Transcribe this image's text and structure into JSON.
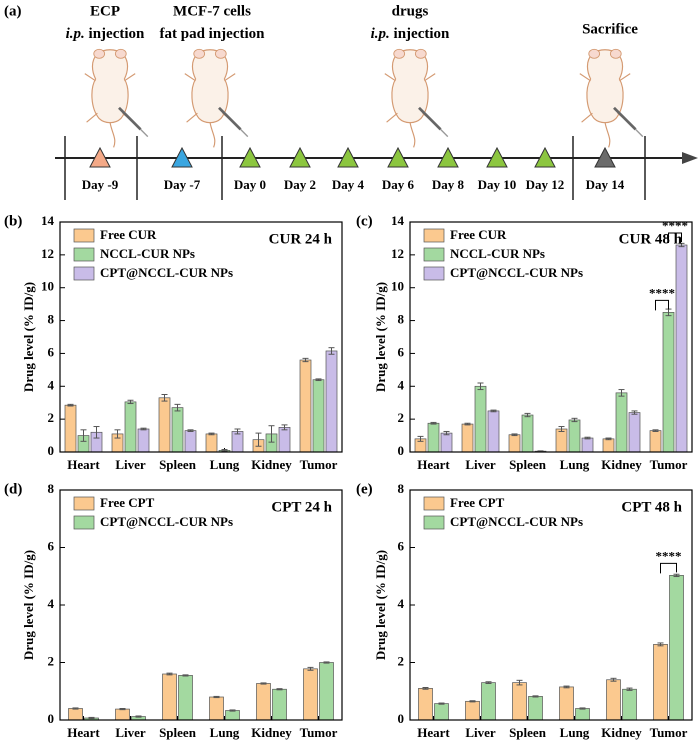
{
  "timeline": {
    "panel_label": "(a)",
    "events": [
      {
        "line1": "ECP",
        "route": "i.p.",
        "line2": "injection"
      },
      {
        "line1": "MCF-7 cells",
        "line2": "fat pad injection"
      },
      {
        "line1": "drugs",
        "route": "i.p.",
        "line2": "injection"
      },
      {
        "line1": "Sacrifice"
      }
    ],
    "days": [
      "Day -9",
      "Day -7",
      "Day 0",
      "Day 2",
      "Day 4",
      "Day 6",
      "Day 8",
      "Day 10",
      "Day 12",
      "Day 14"
    ],
    "day_colors": [
      "#f4a987",
      "#3aa6e0",
      "#8cc63f",
      "#8cc63f",
      "#8cc63f",
      "#8cc63f",
      "#8cc63f",
      "#8cc63f",
      "#8cc63f",
      "#6b6b6b"
    ]
  },
  "chart_data": [
    {
      "type": "bar",
      "panel_label": "(b)",
      "title": "CUR 24 h",
      "y_label": "Drug level (% ID/g)",
      "categories": [
        "Heart",
        "Liver",
        "Spleen",
        "Lung",
        "Kidney",
        "Tumor"
      ],
      "series": [
        {
          "name": "Free CUR",
          "color": "#fbc98f",
          "values": [
            2.85,
            1.1,
            3.3,
            1.1,
            0.75,
            5.6
          ],
          "errors": [
            0.05,
            0.25,
            0.2,
            0.05,
            0.4,
            0.1
          ]
        },
        {
          "name": "NCCL-CUR NPs",
          "color": "#a3d9a0",
          "values": [
            1.0,
            3.05,
            2.7,
            0.1,
            1.1,
            4.4
          ],
          "errors": [
            0.35,
            0.1,
            0.2,
            0.05,
            0.5,
            0.05
          ]
        },
        {
          "name": "CPT@NCCL-CUR NPs",
          "color": "#c9bce8",
          "values": [
            1.2,
            1.4,
            1.3,
            1.25,
            1.5,
            6.15
          ],
          "errors": [
            0.35,
            0.05,
            0.05,
            0.15,
            0.15,
            0.2
          ]
        }
      ],
      "ylim": [
        0,
        14
      ],
      "yticks": [
        0,
        2,
        4,
        6,
        8,
        10,
        12,
        14
      ]
    },
    {
      "type": "bar",
      "panel_label": "(c)",
      "title": "CUR 48 h",
      "y_label": "Drug level (% ID/g)",
      "categories": [
        "Heart",
        "Liver",
        "Spleen",
        "Lung",
        "Kidney",
        "Tumor"
      ],
      "series": [
        {
          "name": "Free CUR",
          "color": "#fbc98f",
          "values": [
            0.8,
            1.7,
            1.05,
            1.4,
            0.8,
            1.3
          ],
          "errors": [
            0.15,
            0.05,
            0.05,
            0.15,
            0.05,
            0.05
          ]
        },
        {
          "name": "NCCL-CUR NPs",
          "color": "#a3d9a0",
          "values": [
            1.75,
            4.0,
            2.25,
            1.95,
            3.6,
            8.5
          ],
          "errors": [
            0.05,
            0.2,
            0.1,
            0.1,
            0.2,
            0.2
          ]
        },
        {
          "name": "CPT@NCCL-CUR NPs",
          "color": "#c9bce8",
          "values": [
            1.15,
            2.5,
            0.05,
            0.85,
            2.4,
            12.6
          ],
          "errors": [
            0.1,
            0.05,
            0.02,
            0.05,
            0.1,
            0.1
          ]
        }
      ],
      "ylim": [
        0,
        14
      ],
      "yticks": [
        0,
        2,
        4,
        6,
        8,
        10,
        12,
        14
      ],
      "annotations": [
        "****",
        "****"
      ]
    },
    {
      "type": "bar",
      "panel_label": "(d)",
      "title": "CPT 24 h",
      "y_label": "Drug level (% ID/g)",
      "categories": [
        "Heart",
        "Liver",
        "Spleen",
        "Lung",
        "Kidney",
        "Tumor"
      ],
      "series": [
        {
          "name": "Free CPT",
          "color": "#fbc98f",
          "values": [
            0.4,
            0.38,
            1.6,
            0.8,
            1.27,
            1.78
          ],
          "errors": [
            0.02,
            0.02,
            0.03,
            0.02,
            0.02,
            0.05
          ]
        },
        {
          "name": "CPT@NCCL-CUR NPs",
          "color": "#a3d9a0",
          "values": [
            0.07,
            0.12,
            1.55,
            0.33,
            1.07,
            2.0
          ],
          "errors": [
            0.02,
            0.02,
            0.02,
            0.02,
            0.02,
            0.02
          ]
        }
      ],
      "ylim": [
        0,
        8
      ],
      "yticks": [
        0,
        2,
        4,
        6,
        8
      ]
    },
    {
      "type": "bar",
      "panel_label": "(e)",
      "title": "CPT 48 h",
      "y_label": "Drug level (% ID/g)",
      "categories": [
        "Heart",
        "Liver",
        "Spleen",
        "Lung",
        "Kidney",
        "Tumor"
      ],
      "series": [
        {
          "name": "Free CPT",
          "color": "#fbc98f",
          "values": [
            1.1,
            0.65,
            1.3,
            1.15,
            1.4,
            2.63
          ],
          "errors": [
            0.03,
            0.02,
            0.08,
            0.03,
            0.05,
            0.05
          ]
        },
        {
          "name": "CPT@NCCL-CUR NPs",
          "color": "#a3d9a0",
          "values": [
            0.57,
            1.3,
            0.82,
            0.4,
            1.07,
            5.03
          ],
          "errors": [
            0.02,
            0.03,
            0.02,
            0.02,
            0.04,
            0.04
          ]
        }
      ],
      "ylim": [
        0,
        8
      ],
      "yticks": [
        0,
        2,
        4,
        6,
        8
      ],
      "annotations": [
        "****"
      ]
    }
  ]
}
